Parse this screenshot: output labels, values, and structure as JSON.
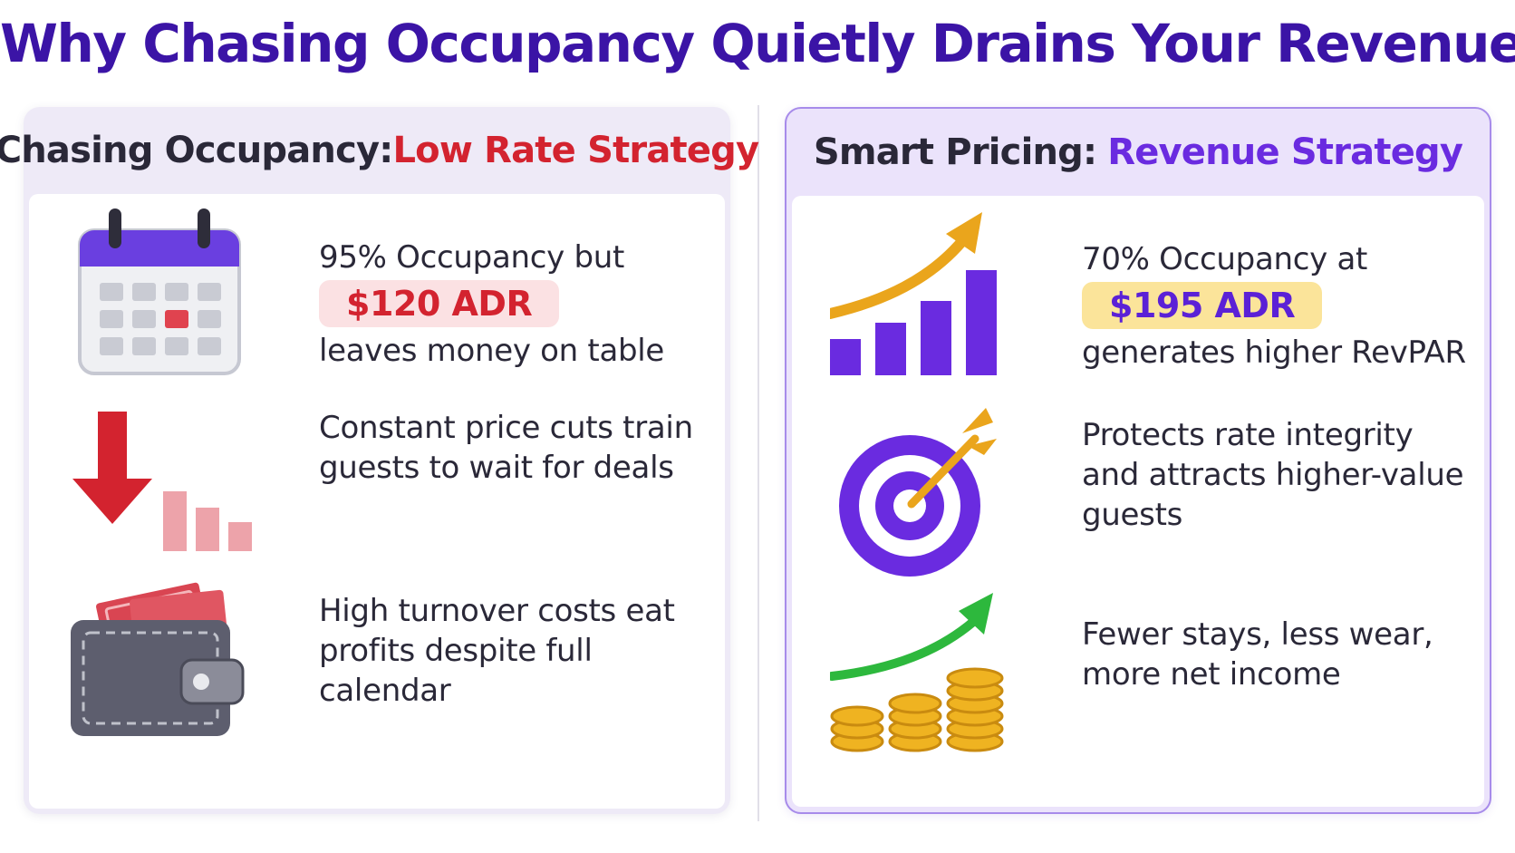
{
  "title": {
    "text": "Why Chasing Occupancy Quietly Drains Your Revenue",
    "color": "#3b14a6"
  },
  "left_panel": {
    "heading_lead": "Chasing Occupancy:",
    "heading_accent": "Low Rate Strategy",
    "accent_color": "#d3232f",
    "items": [
      {
        "icon": "calendar-icon",
        "line1": "95% Occupancy but",
        "pill": "$120 ADR",
        "line2": "leaves money on table"
      },
      {
        "icon": "price-drop-icon",
        "text": "Constant price cuts train guests to wait for deals"
      },
      {
        "icon": "wallet-icon",
        "text": "High turnover costs eat profits despite full calendar"
      }
    ]
  },
  "right_panel": {
    "heading_lead": "Smart Pricing:",
    "heading_accent": "Revenue Strategy",
    "accent_color": "#6a2be0",
    "items": [
      {
        "icon": "growth-chart-icon",
        "line1": "70% Occupancy at",
        "pill": "$195 ADR",
        "line2": "generates higher RevPAR"
      },
      {
        "icon": "target-icon",
        "text": "Protects rate integrity and attracts higher-value guests"
      },
      {
        "icon": "coins-growth-icon",
        "text": "Fewer stays, less wear, more net income"
      }
    ]
  },
  "colors": {
    "text_dark": "#2a2838",
    "red": "#d3232f",
    "red_pill_bg": "#fbe1e3",
    "purple": "#6a2be0",
    "purple_pill_text": "#5b21d6",
    "gold_pill_bg": "#fbe49a",
    "gold": "#eaa51c",
    "green": "#2db83d"
  }
}
